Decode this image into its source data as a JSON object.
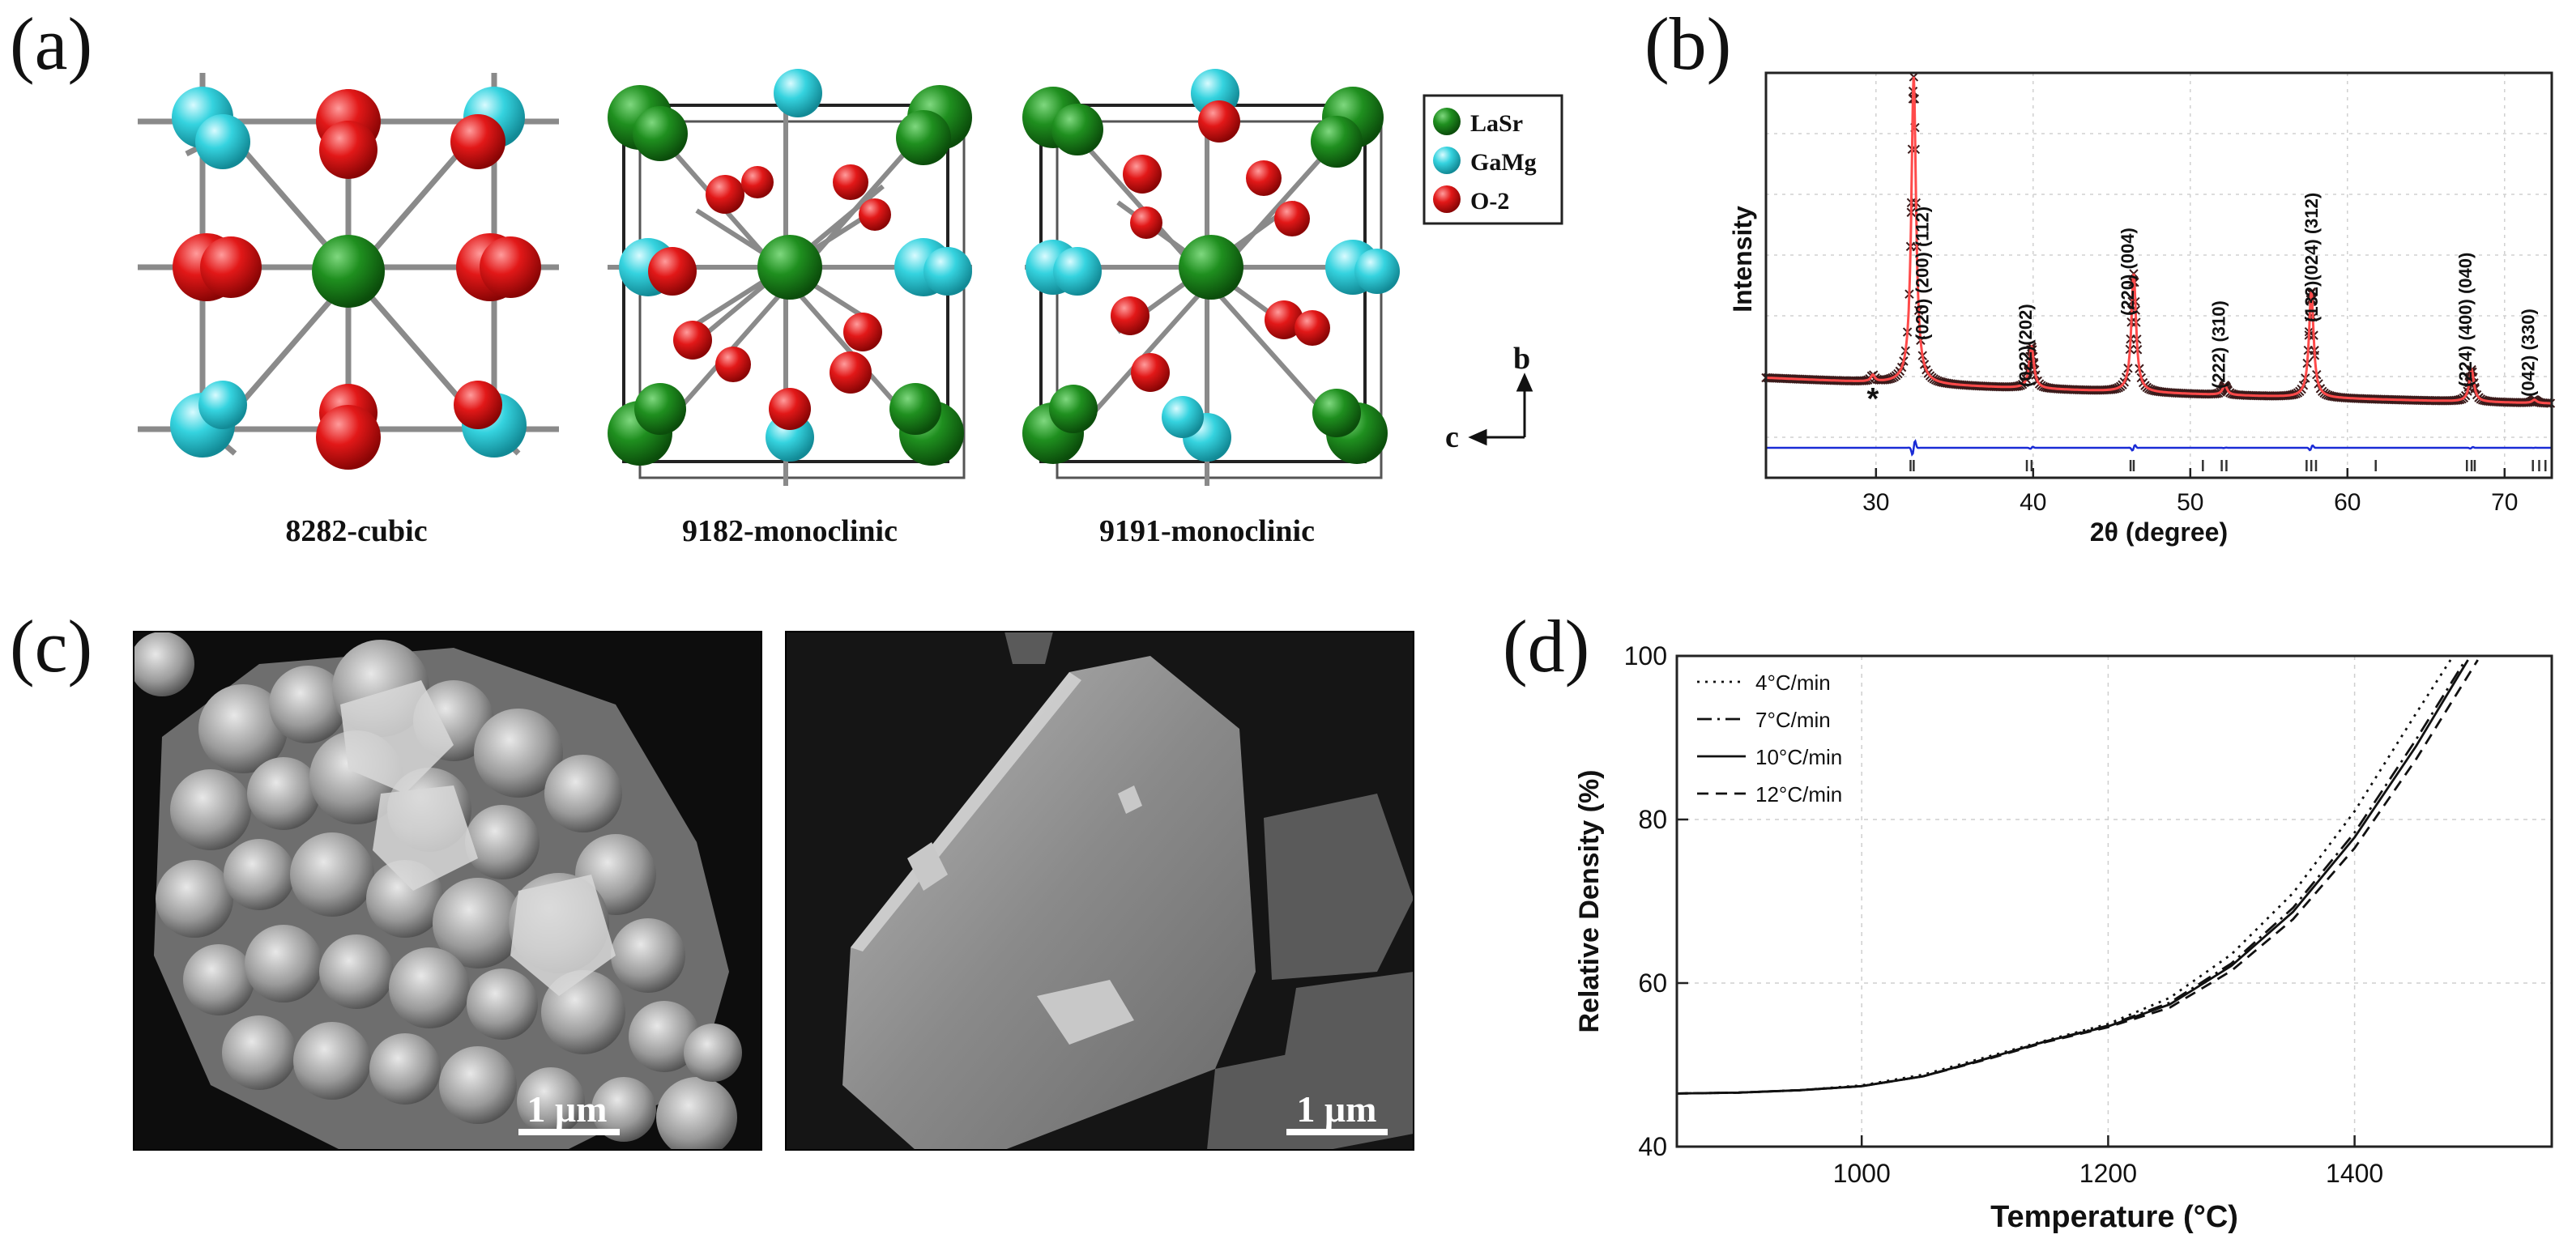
{
  "panels": {
    "a": {
      "label": "(a)",
      "structures": [
        {
          "caption": "8282-cubic"
        },
        {
          "caption": "9182-monoclinic"
        },
        {
          "caption": "9191-monoclinic"
        }
      ],
      "legend": [
        {
          "label": "LaSr",
          "color": "#1e7d1e"
        },
        {
          "label": "GaMg",
          "color": "#35d3df"
        },
        {
          "label": "O-2",
          "color": "#e21818"
        }
      ],
      "axes": {
        "vertical": "b",
        "horizontal": "c"
      }
    },
    "b": {
      "label": "(b)"
    },
    "c": {
      "label": "(c)",
      "images": [
        {
          "scale_bar": "1 μm"
        },
        {
          "scale_bar": "1 μm"
        }
      ]
    },
    "d": {
      "label": "(d)"
    }
  },
  "chart_data": [
    {
      "type": "line",
      "panel": "b",
      "xlabel": "2θ (degree)",
      "ylabel": "Intensity",
      "xlim": [
        23,
        73
      ],
      "xticks": [
        30,
        40,
        50,
        60,
        70
      ],
      "grid": true,
      "marker_star": {
        "x": 29.8,
        "label": "*"
      },
      "peaks": [
        {
          "x": 32.4,
          "height": 0.96,
          "label": "(020) (200) (112)"
        },
        {
          "x": 39.9,
          "height": 0.13,
          "label": "(022)(202)"
        },
        {
          "x": 46.4,
          "height": 0.37,
          "label": "(220) (004)"
        },
        {
          "x": 52.2,
          "height": 0.03,
          "label": "(222) (310)"
        },
        {
          "x": 57.7,
          "height": 0.33,
          "label": "(132)(024) (312)"
        },
        {
          "x": 67.9,
          "height": 0.1,
          "label": "(224) (400) (040)"
        },
        {
          "x": 71.9,
          "height": 0.01,
          "label": "(042) (330)"
        }
      ],
      "bragg_ticks": [
        32.2,
        32.4,
        39.6,
        39.9,
        46.2,
        46.4,
        50.8,
        52.0,
        52.3,
        57.4,
        57.7,
        58.0,
        61.8,
        67.6,
        67.9,
        68.1,
        71.8,
        72.2,
        72.6
      ]
    },
    {
      "type": "line",
      "panel": "d",
      "xlabel": "Temperature (°C)",
      "ylabel": "Relative Density (%)",
      "xlim": [
        850,
        1560
      ],
      "ylim": [
        40,
        100
      ],
      "xticks": [
        1000,
        1200,
        1400
      ],
      "yticks": [
        40,
        60,
        80,
        100
      ],
      "grid": true,
      "legend_position": "top-left",
      "series": [
        {
          "name": "4°C/min",
          "style": "dotted",
          "x": [
            850,
            900,
            950,
            1000,
            1050,
            1100,
            1150,
            1200,
            1250,
            1300,
            1350,
            1400,
            1450,
            1480
          ],
          "y": [
            46.5,
            46.6,
            46.9,
            47.5,
            48.8,
            50.9,
            53.0,
            55.0,
            58.2,
            63.5,
            71.0,
            81.0,
            93.0,
            100
          ]
        },
        {
          "name": "7°C/min",
          "style": "dashdot",
          "x": [
            850,
            900,
            950,
            1000,
            1050,
            1100,
            1150,
            1200,
            1250,
            1300,
            1350,
            1400,
            1450,
            1490
          ],
          "y": [
            46.5,
            46.6,
            46.9,
            47.4,
            48.6,
            50.7,
            52.9,
            54.8,
            57.6,
            62.4,
            69.2,
            78.4,
            89.8,
            99.5
          ]
        },
        {
          "name": "10°C/min",
          "style": "solid",
          "x": [
            850,
            900,
            950,
            1000,
            1050,
            1100,
            1150,
            1200,
            1250,
            1300,
            1350,
            1400,
            1450,
            1492
          ],
          "y": [
            46.5,
            46.6,
            46.9,
            47.4,
            48.6,
            50.7,
            52.9,
            54.7,
            57.4,
            62.1,
            68.7,
            77.8,
            89.0,
            99.5
          ]
        },
        {
          "name": "12°C/min",
          "style": "dashed",
          "x": [
            850,
            900,
            950,
            1000,
            1050,
            1100,
            1150,
            1200,
            1250,
            1300,
            1350,
            1400,
            1450,
            1500
          ],
          "y": [
            46.5,
            46.6,
            46.9,
            47.4,
            48.6,
            50.6,
            52.8,
            54.6,
            57.0,
            61.5,
            67.8,
            76.5,
            87.4,
            99.5
          ]
        }
      ]
    }
  ]
}
